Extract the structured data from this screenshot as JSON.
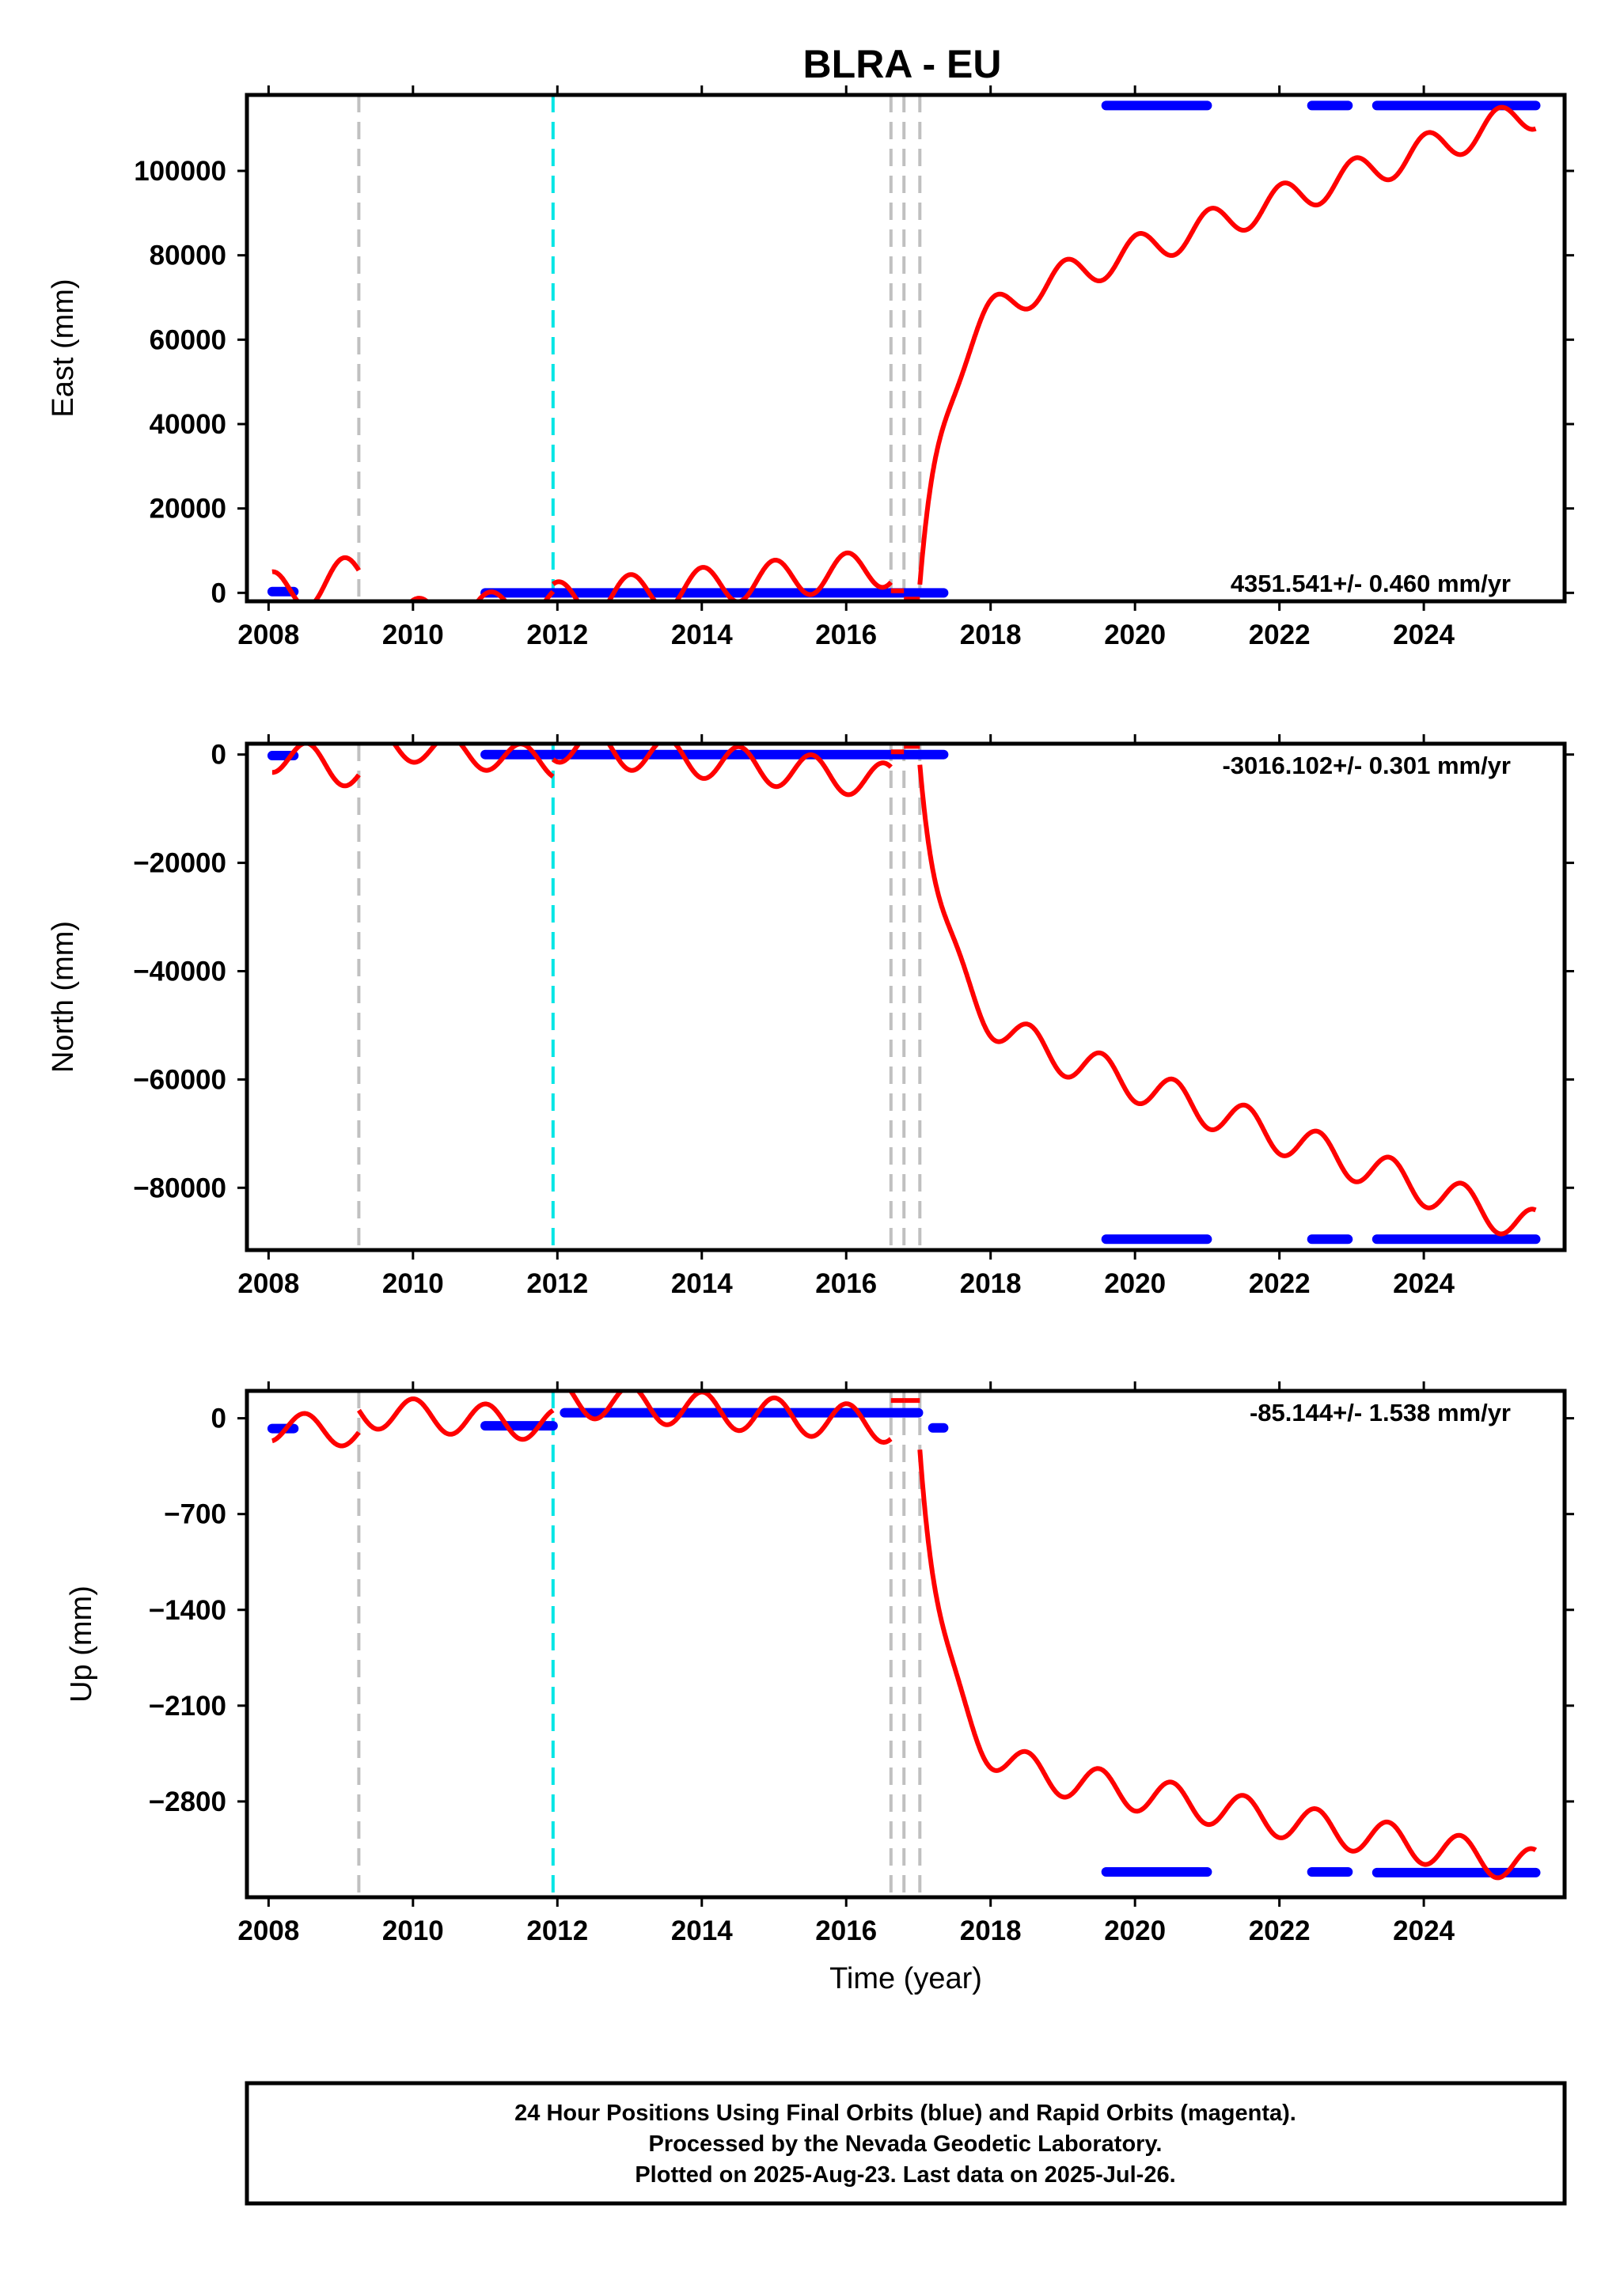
{
  "figure": {
    "title": "BLRA - EU",
    "footer_lines": [
      "24 Hour Positions Using Final Orbits (blue) and Rapid Orbits (magenta).",
      "Processed by the Nevada Geodetic Laboratory.",
      "Plotted on 2025-Aug-23. Last data on 2025-Jul-26."
    ]
  },
  "colors": {
    "data": "#0000ff",
    "model": "#ff0000",
    "equipment_change": "#c0c0c0",
    "earthquake": "#00e5e5",
    "frame": "#000000"
  },
  "chart_data": [
    {
      "type": "scatter",
      "panel": "east",
      "ylabel": "East (mm)",
      "xlabel": "",
      "rate_label": "4351.541+/- 0.460 mm/yr",
      "xlim": [
        2007.7,
        2025.95
      ],
      "ylim": [
        -2000,
        118000
      ],
      "xticks": [
        2008,
        2010,
        2012,
        2014,
        2016,
        2018,
        2020,
        2022,
        2024
      ],
      "xtick_labels": [
        "2008",
        "2010",
        "2012",
        "2014",
        "2016",
        "2018",
        "2020",
        "2022",
        "2024"
      ],
      "yticks": [
        0,
        20000,
        40000,
        60000,
        80000,
        100000
      ],
      "ytick_labels": [
        "0",
        "20000",
        "40000",
        "60000",
        "80000",
        "100000"
      ],
      "equipment_changes": [
        2009.25,
        2016.62,
        2016.8,
        2017.02
      ],
      "earthquakes": [
        2011.94
      ],
      "data_segments": [
        {
          "x_start": 2008.05,
          "x_end": 2008.35,
          "y": 300
        },
        {
          "x_start": 2011.0,
          "x_end": 2017.35,
          "y": 0
        },
        {
          "x_start": 2019.6,
          "x_end": 2021.0,
          "y": 115500
        },
        {
          "x_start": 2022.45,
          "x_end": 2022.95,
          "y": 115500
        },
        {
          "x_start": 2023.35,
          "x_end": 2025.55,
          "y": 115500
        }
      ],
      "model": [
        {
          "x_start": 2008.05,
          "x_end": 2009.25,
          "trend": [
            0,
            4000
          ],
          "annual_amp": 5000,
          "phase": 1.3
        },
        {
          "x_start": 2009.25,
          "x_end": 2011.94,
          "trend": [
            -6000,
            -2000
          ],
          "annual_amp": 3500,
          "phase": 1.1
        },
        {
          "x_start": 2011.94,
          "x_end": 2016.62,
          "trend": [
            -2000,
            6000
          ],
          "annual_amp": 4500,
          "phase": 1.5
        },
        {
          "x_start": 2016.62,
          "x_end": 2016.8,
          "trend": [
            500,
            500
          ],
          "annual_amp": 0,
          "phase": 0
        },
        {
          "x_start": 2016.8,
          "x_end": 2017.02,
          "trend": [
            -1500,
            -1500
          ],
          "annual_amp": 0,
          "phase": 0
        },
        {
          "x_start": 2017.02,
          "x_end": 2025.55,
          "trend": [
            -2000,
            114000
          ],
          "annual_amp": 4000,
          "phase": 1.3,
          "postseismic": {
            "amp": 65000,
            "tau": 0.33
          }
        }
      ]
    },
    {
      "type": "scatter",
      "panel": "north",
      "ylabel": "North (mm)",
      "xlabel": "",
      "rate_label": "-3016.102+/- 0.301 mm/yr",
      "xlim": [
        2007.7,
        2025.95
      ],
      "ylim": [
        -91500,
        2000
      ],
      "xticks": [
        2008,
        2010,
        2012,
        2014,
        2016,
        2018,
        2020,
        2022,
        2024
      ],
      "xtick_labels": [
        "2008",
        "2010",
        "2012",
        "2014",
        "2016",
        "2018",
        "2020",
        "2022",
        "2024"
      ],
      "yticks": [
        0,
        -20000,
        -40000,
        -60000,
        -80000
      ],
      "ytick_labels": [
        "0",
        "−20000",
        "−40000",
        "−60000",
        "−80000"
      ],
      "equipment_changes": [
        2009.25,
        2016.62,
        2016.8,
        2017.02
      ],
      "earthquakes": [
        2011.94
      ],
      "data_segments": [
        {
          "x_start": 2008.05,
          "x_end": 2008.35,
          "y": -200
        },
        {
          "x_start": 2011.0,
          "x_end": 2017.35,
          "y": 0
        },
        {
          "x_start": 2019.6,
          "x_end": 2021.0,
          "y": -89500
        },
        {
          "x_start": 2022.45,
          "x_end": 2022.95,
          "y": -89500
        },
        {
          "x_start": 2023.35,
          "x_end": 2025.55,
          "y": -89500
        }
      ],
      "model": [
        {
          "x_start": 2008.05,
          "x_end": 2009.25,
          "trend": [
            0,
            -3000
          ],
          "annual_amp": 3300,
          "phase": -1.8
        },
        {
          "x_start": 2009.25,
          "x_end": 2011.94,
          "trend": [
            2500,
            -1500
          ],
          "annual_amp": 2800,
          "phase": -1.6
        },
        {
          "x_start": 2011.94,
          "x_end": 2016.62,
          "trend": [
            2000,
            -5000
          ],
          "annual_amp": 3300,
          "phase": -1.7
        },
        {
          "x_start": 2016.62,
          "x_end": 2016.8,
          "trend": [
            500,
            500
          ],
          "annual_amp": 0,
          "phase": 0
        },
        {
          "x_start": 2016.8,
          "x_end": 2017.02,
          "trend": [
            1500,
            1500
          ],
          "annual_amp": 0,
          "phase": 0
        },
        {
          "x_start": 2017.02,
          "x_end": 2025.55,
          "trend": [
            1500,
            -87500
          ],
          "annual_amp": 3400,
          "phase": -1.8,
          "postseismic": {
            "amp": -48000,
            "tau": 0.33
          }
        }
      ]
    },
    {
      "type": "scatter",
      "panel": "up",
      "ylabel": "Up (mm)",
      "xlabel": "Time (year)",
      "rate_label": "-85.144+/- 1.538 mm/yr",
      "xlim": [
        2007.7,
        2025.95
      ],
      "ylim": [
        -3500,
        200
      ],
      "xticks": [
        2008,
        2010,
        2012,
        2014,
        2016,
        2018,
        2020,
        2022,
        2024
      ],
      "xtick_labels": [
        "2008",
        "2010",
        "2012",
        "2014",
        "2016",
        "2018",
        "2020",
        "2022",
        "2024"
      ],
      "yticks": [
        0,
        -700,
        -1400,
        -2100,
        -2800
      ],
      "ytick_labels": [
        "0",
        "−700",
        "−1400",
        "−2100",
        "−2800"
      ],
      "equipment_changes": [
        2009.25,
        2016.62,
        2016.8,
        2017.02
      ],
      "earthquakes": [
        2011.94
      ],
      "data_segments": [
        {
          "x_start": 2008.05,
          "x_end": 2008.35,
          "y": -75
        },
        {
          "x_start": 2011.0,
          "x_end": 2011.94,
          "y": -55
        },
        {
          "x_start": 2012.1,
          "x_end": 2017.0,
          "y": 40
        },
        {
          "x_start": 2017.2,
          "x_end": 2017.35,
          "y": -70
        },
        {
          "x_start": 2019.6,
          "x_end": 2021.0,
          "y": -3315
        },
        {
          "x_start": 2022.45,
          "x_end": 2022.95,
          "y": -3315
        },
        {
          "x_start": 2023.35,
          "x_end": 2025.55,
          "y": -3320
        }
      ],
      "model": [
        {
          "x_start": 2008.05,
          "x_end": 2009.25,
          "trend": [
            -60,
            -100
          ],
          "annual_amp": 110,
          "phase": -1.6
        },
        {
          "x_start": 2009.25,
          "x_end": 2011.94,
          "trend": [
            50,
            -50
          ],
          "annual_amp": 120,
          "phase": 1.5
        },
        {
          "x_start": 2011.94,
          "x_end": 2016.62,
          "trend": [
            150,
            -50
          ],
          "annual_amp": 130,
          "phase": 1.5
        },
        {
          "x_start": 2016.62,
          "x_end": 2016.8,
          "trend": [
            130,
            130
          ],
          "annual_amp": 0,
          "phase": 0
        },
        {
          "x_start": 2016.8,
          "x_end": 2017.02,
          "trend": [
            130,
            130
          ],
          "annual_amp": 0,
          "phase": 0
        },
        {
          "x_start": 2017.02,
          "x_end": 2025.55,
          "trend": [
            -100,
            -3280
          ],
          "annual_amp": 130,
          "phase": -1.6,
          "postseismic": {
            "amp": -2350,
            "tau": 0.33
          }
        }
      ]
    }
  ]
}
